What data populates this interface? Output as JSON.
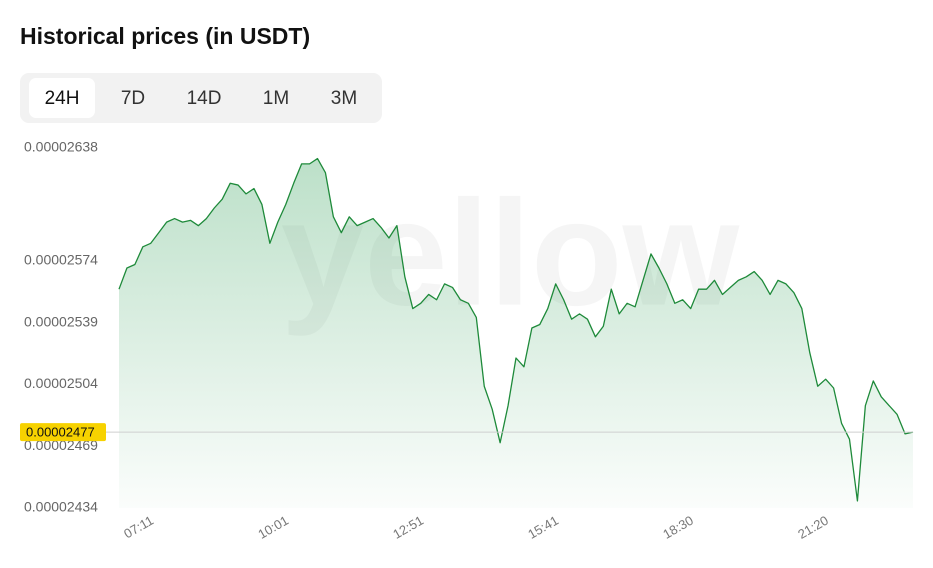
{
  "header": {
    "title": "Historical prices (in USDT)"
  },
  "tabs": {
    "items": [
      "24H",
      "7D",
      "14D",
      "1M",
      "3M"
    ],
    "selected": 0
  },
  "chart_data": {
    "type": "line",
    "watermark": "yellow",
    "categories": [
      null,
      null,
      null,
      "07:11",
      null,
      null,
      null,
      null,
      null,
      null,
      null,
      null,
      null,
      null,
      null,
      null,
      null,
      null,
      null,
      null,
      "10:01",
      null,
      null,
      null,
      null,
      null,
      null,
      null,
      null,
      null,
      null,
      null,
      null,
      null,
      null,
      null,
      null,
      "12:51",
      null,
      null,
      null,
      null,
      null,
      null,
      null,
      null,
      null,
      null,
      null,
      null,
      null,
      null,
      null,
      null,
      "15:41",
      null,
      null,
      null,
      null,
      null,
      null,
      null,
      null,
      null,
      null,
      null,
      null,
      null,
      null,
      null,
      null,
      "18:30",
      null,
      null,
      null,
      null,
      null,
      null,
      null,
      null,
      null,
      null,
      null,
      null,
      null,
      null,
      null,
      null,
      "21:20",
      null,
      null,
      null,
      null,
      null,
      null,
      null,
      null,
      null,
      null,
      null,
      null
    ],
    "series": [
      {
        "name": null,
        "color": "#1e8a3a",
        "values": [
          2.558e-05,
          2.57e-05,
          2.572e-05,
          2.582e-05,
          2.584e-05,
          2.59e-05,
          2.596e-05,
          2.598e-05,
          2.596e-05,
          2.597e-05,
          2.594e-05,
          2.598e-05,
          2.604e-05,
          2.609e-05,
          2.618e-05,
          2.617e-05,
          2.612e-05,
          2.615e-05,
          2.606e-05,
          2.584e-05,
          2.596e-05,
          2.606e-05,
          2.618e-05,
          2.629e-05,
          2.629e-05,
          2.632e-05,
          2.624e-05,
          2.599e-05,
          2.59e-05,
          2.599e-05,
          2.594e-05,
          2.596e-05,
          2.598e-05,
          2.593e-05,
          2.587e-05,
          2.594e-05,
          2.565e-05,
          2.547e-05,
          2.55e-05,
          2.555e-05,
          2.552e-05,
          2.561e-05,
          2.559e-05,
          2.552e-05,
          2.55e-05,
          2.542e-05,
          2.503e-05,
          2.49e-05,
          2.471e-05,
          2.492e-05,
          2.519e-05,
          2.514e-05,
          2.536e-05,
          2.538e-05,
          2.547e-05,
          2.561e-05,
          2.552e-05,
          2.541e-05,
          2.544e-05,
          2.541e-05,
          2.531e-05,
          2.537e-05,
          2.558e-05,
          2.544e-05,
          2.55e-05,
          2.548e-05,
          2.563e-05,
          2.578e-05,
          2.57e-05,
          2.561e-05,
          2.55e-05,
          2.552e-05,
          2.547e-05,
          2.558e-05,
          2.558e-05,
          2.563e-05,
          2.555e-05,
          2.559e-05,
          2.563e-05,
          2.565e-05,
          2.568e-05,
          2.563e-05,
          2.555e-05,
          2.563e-05,
          2.561e-05,
          2.556e-05,
          2.547e-05,
          2.522e-05,
          2.503e-05,
          2.507e-05,
          2.502e-05,
          2.482e-05,
          2.473e-05,
          2.438e-05,
          2.492e-05,
          2.506e-05,
          2.497e-05,
          2.492e-05,
          2.487e-05,
          2.476e-05,
          2.477e-05
        ]
      }
    ],
    "current_price": 2.477e-05,
    "ylim": [
      2.434e-05,
      2.638e-05
    ],
    "yticks": [
      2.638e-05,
      2.574e-05,
      2.539e-05,
      2.504e-05,
      2.469e-05,
      2.434e-05
    ]
  }
}
